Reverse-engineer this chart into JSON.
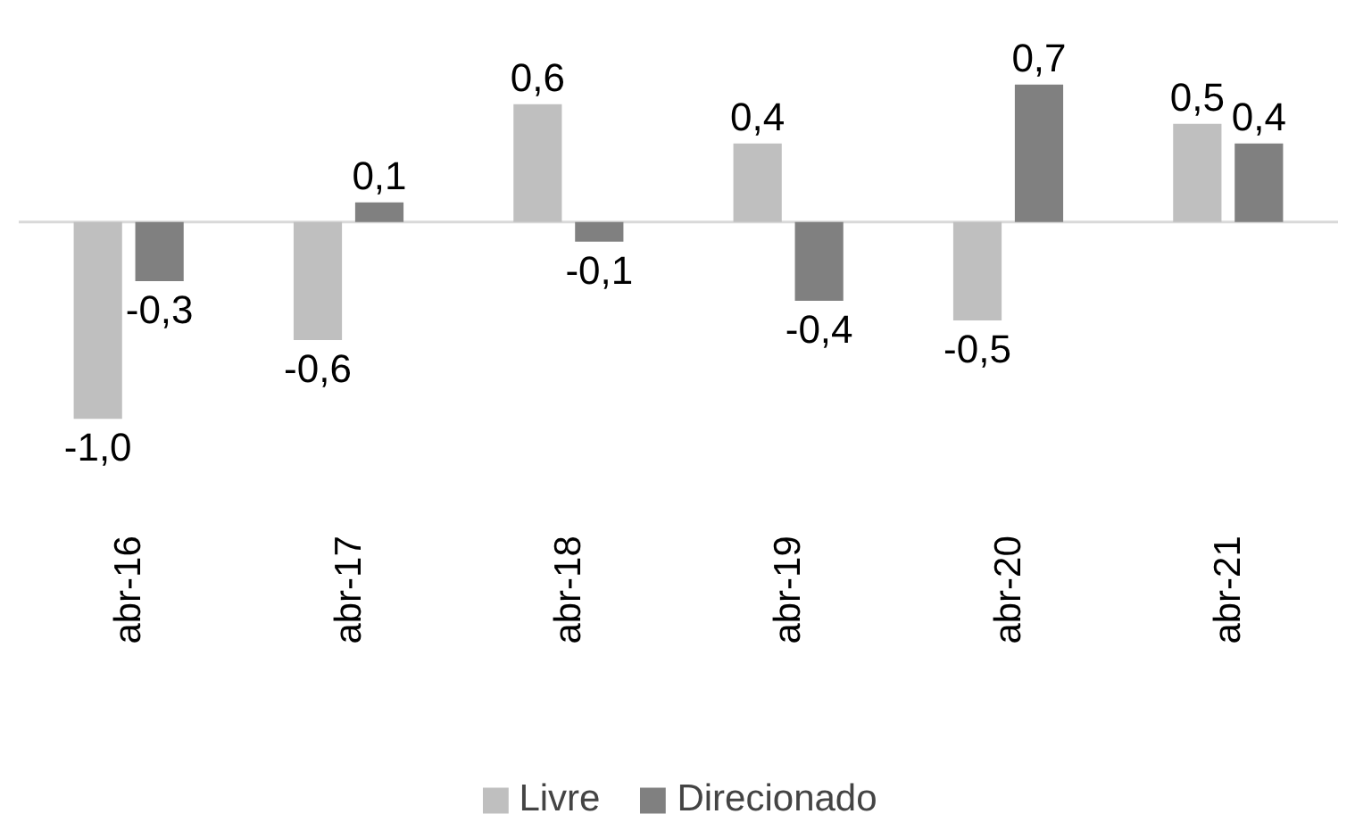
{
  "chart_data": {
    "type": "bar",
    "categories": [
      "abr-16",
      "abr-17",
      "abr-18",
      "abr-19",
      "abr-20",
      "abr-21"
    ],
    "series": [
      {
        "name": "Livre",
        "color": "#bfbfbf",
        "values": [
          -1.0,
          -0.6,
          0.6,
          0.4,
          -0.5,
          0.5
        ],
        "value_labels": [
          "-1,0",
          "-0,6",
          "0,6",
          "0,4",
          "-0,5",
          "0,5"
        ]
      },
      {
        "name": "Direcionado",
        "color": "#808080",
        "values": [
          -0.3,
          0.1,
          -0.1,
          -0.4,
          0.7,
          0.4
        ],
        "value_labels": [
          "-0,3",
          "0,1",
          "-0,1",
          "-0,4",
          "0,7",
          "0,4"
        ]
      }
    ],
    "legend": "bottom"
  }
}
